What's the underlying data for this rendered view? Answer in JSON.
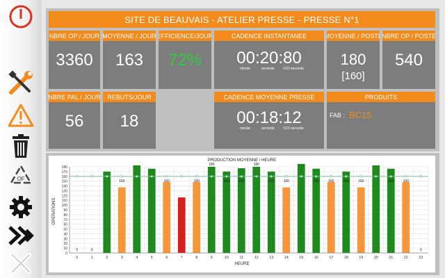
{
  "title": "SITE DE BEAUVAIS - ATELIER PRESSE - PRESSE N°1",
  "colors": {
    "orange": "#f38b1c",
    "tile": "#7d7d7d",
    "green_bar": "#1e8a1e",
    "orange_bar": "#f7953a",
    "red_bar": "#d6201f",
    "target_line": "#7fbf9f",
    "efficiency_text": "#2ecc40"
  },
  "sidebar": {
    "items": [
      {
        "name": "power-icon"
      },
      {
        "name": "tools-icon"
      },
      {
        "name": "warning-icon"
      },
      {
        "name": "trash-icon"
      },
      {
        "name": "recycle-icon",
        "label": "OF"
      },
      {
        "name": "gear-icon"
      },
      {
        "name": "fast-forward-icon"
      },
      {
        "name": "close-icon"
      }
    ]
  },
  "tiles": {
    "nbre_op_jour": {
      "label": "NBRE OP / JOUR",
      "value": "3360"
    },
    "moyenne_jour": {
      "label": "MOYENNE / JOUR",
      "value": "163"
    },
    "efficience_jour": {
      "label": "EFFICIENCE/JOUR",
      "value": "72%"
    },
    "cadence_instantanee": {
      "label": "CADENCE INSTANTANEE",
      "value": "00:20:80",
      "sub_minute": "minute",
      "sub_seconde": "seconde",
      "sub_dixieme": "1/10 seconde"
    },
    "moyenne_poste": {
      "label": "MOYENNE / POSTE",
      "value": "180",
      "value2": "[160]"
    },
    "nbre_op_poste": {
      "label": "NBRE OP / POSTE",
      "value": "540"
    },
    "nbre_pal_jour": {
      "label": "NBRE PAL / JOUR",
      "value": "56"
    },
    "rebuts_jour": {
      "label": "REBUTS/JOUR",
      "value": "18"
    },
    "cadence_moyenne": {
      "label": "CADENCE MOYENNE PRESSE",
      "value": "00:18:12",
      "sub_minute": "minute",
      "sub_seconde": "seconde",
      "sub_dixieme": "1/10 seconde"
    },
    "produits": {
      "label": "PRODUITS",
      "fab_label": "FAB :",
      "fab_value": "BC15"
    }
  },
  "chart_data": {
    "type": "bar",
    "title": "PRODUCTION MOYENNE / HEURE",
    "xlabel": "HEURE",
    "ylabel": "OPERATIONS",
    "ylim": [
      0,
      180
    ],
    "yticks": [
      0,
      10,
      20,
      30,
      40,
      50,
      60,
      70,
      80,
      90,
      100,
      110,
      120,
      130,
      140,
      150,
      160,
      170,
      180
    ],
    "categories": [
      "0",
      "1",
      "2",
      "3",
      "4",
      "5",
      "6",
      "7",
      "8",
      "9",
      "10",
      "11",
      "12",
      "13",
      "14",
      "15",
      "16",
      "17",
      "18",
      "19",
      "20",
      "21",
      "22",
      "23"
    ],
    "values": [
      0,
      0,
      170,
      137,
      183,
      176,
      148,
      116,
      148,
      180,
      170,
      177,
      180,
      170,
      137,
      186,
      176,
      148,
      170,
      137,
      183,
      176,
      148,
      0
    ],
    "status": [
      "none",
      "none",
      "green",
      "orange",
      "green",
      "green",
      "orange",
      "red",
      "orange",
      "green",
      "green",
      "green",
      "green",
      "green",
      "orange",
      "green",
      "green",
      "orange",
      "green",
      "orange",
      "green",
      "green",
      "orange",
      "none"
    ],
    "value_labels": [
      "0",
      "0",
      "",
      "160",
      "",
      "",
      "160",
      "",
      "160",
      "180",
      "160",
      "160",
      "180",
      "160",
      "160",
      "",
      "160",
      "160",
      "160",
      "160",
      "",
      "160",
      "160",
      "0"
    ],
    "target": {
      "value": 160,
      "label": "160"
    },
    "grid": true
  }
}
